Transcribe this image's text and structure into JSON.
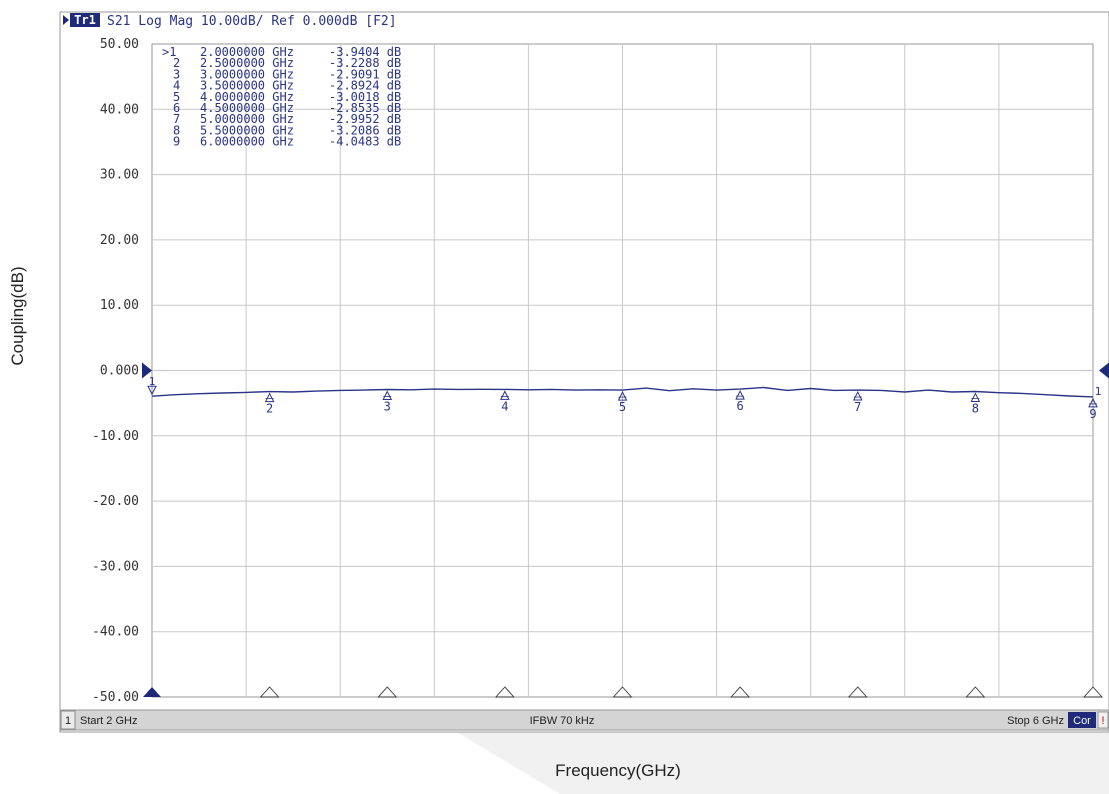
{
  "header": {
    "trace_badge": "Tr1",
    "trace_info": "S21 Log Mag 10.00dB/ Ref 0.000dB [F2]"
  },
  "outer_labels": {
    "ylabel": "Coupling(dB)",
    "xlabel": "Frequency(GHz)"
  },
  "status_bar": {
    "channel": "1",
    "start": "Start 2 GHz",
    "ifbw": "IFBW 70 kHz",
    "stop": "Stop 6 GHz",
    "cor": "Cor",
    "flag": "!"
  },
  "colors": {
    "trace": "#2a3486",
    "marker_fill": "#1f2a7a",
    "grid": "#c8c8c8",
    "plot_bg": "#ffffff",
    "status_bg": "#d4d4d4",
    "badge_bg": "#1f2a7a"
  },
  "chart_data": {
    "type": "line",
    "title": "",
    "xlabel": "Frequency(GHz)",
    "ylabel": "Coupling(dB)",
    "xlim": [
      2,
      6
    ],
    "ylim": [
      -50,
      50
    ],
    "yticks": [
      "50.00",
      "40.00",
      "30.00",
      "20.00",
      "10.00",
      "0.000",
      "-10.00",
      "-20.00",
      "-30.00",
      "-40.00",
      "-50.00"
    ],
    "ytick_values": [
      50,
      40,
      30,
      20,
      10,
      0,
      -10,
      -20,
      -30,
      -40,
      -50
    ],
    "x_grid_divisions": 10,
    "grid": true,
    "reference_level": 0,
    "series": [
      {
        "x": [
          2.0,
          2.1,
          2.2,
          2.3,
          2.4,
          2.5,
          2.6,
          2.7,
          2.8,
          2.9,
          3.0,
          3.1,
          3.2,
          3.3,
          3.4,
          3.5,
          3.6,
          3.7,
          3.8,
          3.9,
          4.0,
          4.1,
          4.2,
          4.3,
          4.4,
          4.5,
          4.6,
          4.7,
          4.8,
          4.9,
          5.0,
          5.1,
          5.2,
          5.3,
          5.4,
          5.5,
          5.6,
          5.7,
          5.8,
          5.9,
          6.0
        ],
        "y": [
          -3.94,
          -3.7,
          -3.55,
          -3.45,
          -3.35,
          -3.23,
          -3.3,
          -3.15,
          -3.05,
          -3.0,
          -2.91,
          -2.95,
          -2.85,
          -2.9,
          -2.88,
          -2.89,
          -2.95,
          -2.9,
          -3.0,
          -2.95,
          -3.0,
          -2.7,
          -3.1,
          -2.8,
          -3.0,
          -2.85,
          -2.6,
          -3.05,
          -2.75,
          -3.05,
          -3.0,
          -3.05,
          -3.3,
          -3.0,
          -3.3,
          -3.21,
          -3.4,
          -3.5,
          -3.7,
          -3.9,
          -4.05
        ]
      }
    ],
    "markers": [
      {
        "id": "1",
        "label": ">1",
        "freq_text": "2.0000000 GHz",
        "value_text": "-3.9404 dB",
        "x": 2.0,
        "y": -3.9404
      },
      {
        "id": "2",
        "label": "2",
        "freq_text": "2.5000000 GHz",
        "value_text": "-3.2288 dB",
        "x": 2.5,
        "y": -3.2288
      },
      {
        "id": "3",
        "label": "3",
        "freq_text": "3.0000000 GHz",
        "value_text": "-2.9091 dB",
        "x": 3.0,
        "y": -2.9091
      },
      {
        "id": "4",
        "label": "4",
        "freq_text": "3.5000000 GHz",
        "value_text": "-2.8924 dB",
        "x": 3.5,
        "y": -2.8924
      },
      {
        "id": "5",
        "label": "5",
        "freq_text": "4.0000000 GHz",
        "value_text": "-3.0018 dB",
        "x": 4.0,
        "y": -3.0018
      },
      {
        "id": "6",
        "label": "6",
        "freq_text": "4.5000000 GHz",
        "value_text": "-2.8535 dB",
        "x": 4.5,
        "y": -2.8535
      },
      {
        "id": "7",
        "label": "7",
        "freq_text": "5.0000000 GHz",
        "value_text": "-2.9952 dB",
        "x": 5.0,
        "y": -2.9952
      },
      {
        "id": "8",
        "label": "8",
        "freq_text": "5.5000000 GHz",
        "value_text": "-3.2086 dB",
        "x": 5.5,
        "y": -3.2086
      },
      {
        "id": "9",
        "label": "9",
        "freq_text": "6.0000000 GHz",
        "value_text": "-4.0483 dB",
        "x": 6.0,
        "y": -4.0483
      }
    ]
  }
}
